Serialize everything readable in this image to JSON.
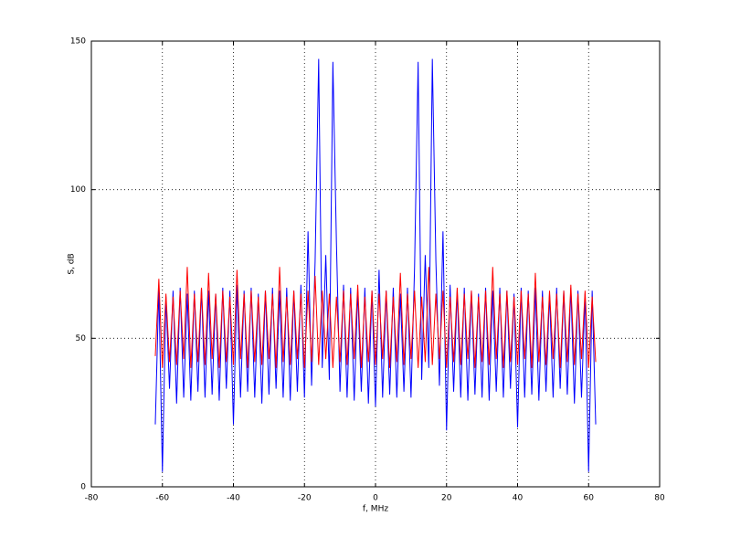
{
  "chart_data": {
    "type": "line",
    "x_label": "f, MHz",
    "y_label": "S, dB",
    "x": [
      -62,
      -61,
      -60,
      -59,
      -58,
      -57,
      -56,
      -55,
      -54,
      -53,
      -52,
      -51,
      -50,
      -49,
      -48,
      -47,
      -46,
      -45,
      -44,
      -43,
      -42,
      -41,
      -40,
      -39,
      -38,
      -37,
      -36,
      -35,
      -34,
      -33,
      -32,
      -31,
      -30,
      -29,
      -28,
      -27,
      -26,
      -25,
      -24,
      -23,
      -22,
      -21,
      -20,
      -19,
      -18,
      -17,
      -16,
      -15,
      -14,
      -13,
      -12,
      -11,
      -10,
      -9,
      -8,
      -7,
      -6,
      -5,
      -4,
      -3,
      -2,
      -1,
      0,
      1,
      2,
      3,
      4,
      5,
      6,
      7,
      8,
      9,
      10,
      11,
      12,
      13,
      14,
      15,
      16,
      17,
      18,
      19,
      20,
      21,
      22,
      23,
      24,
      25,
      26,
      27,
      28,
      29,
      30,
      31,
      32,
      33,
      34,
      35,
      36,
      37,
      38,
      39,
      40,
      41,
      42,
      43,
      44,
      45,
      46,
      47,
      48,
      49,
      50,
      51,
      52,
      53,
      54,
      55,
      56,
      57,
      58,
      59,
      60,
      61,
      62
    ],
    "series": [
      {
        "color": "#0000ff",
        "values": [
          21,
          67,
          5,
          64,
          33,
          66,
          28,
          67,
          30,
          65,
          29,
          66,
          32,
          67,
          30,
          66,
          31,
          65,
          29,
          67,
          33,
          66,
          21,
          68,
          30,
          66,
          32,
          67,
          30,
          65,
          28,
          66,
          31,
          67,
          33,
          66,
          30,
          67,
          29,
          66,
          32,
          68,
          30,
          86,
          34,
          76,
          144,
          40,
          78,
          36,
          143,
          82,
          32,
          68,
          30,
          67,
          29,
          66,
          32,
          67,
          28,
          66,
          27,
          73,
          30,
          66,
          31,
          67,
          30,
          65,
          32,
          67,
          30,
          74,
          143,
          36,
          78,
          40,
          144,
          76,
          34,
          86,
          19,
          68,
          32,
          66,
          30,
          67,
          29,
          66,
          31,
          65,
          30,
          67,
          29,
          66,
          32,
          67,
          30,
          66,
          33,
          65,
          20,
          67,
          30,
          66,
          31,
          67,
          29,
          66,
          32,
          65,
          30,
          67,
          33,
          66,
          31,
          67,
          28,
          66,
          30,
          65,
          5,
          66,
          21
        ]
      },
      {
        "color": "#ff0000",
        "values": [
          44,
          70,
          40,
          65,
          42,
          64,
          41,
          66,
          43,
          74,
          40,
          65,
          42,
          67,
          41,
          72,
          43,
          65,
          40,
          66,
          42,
          64,
          41,
          73,
          43,
          65,
          40,
          66,
          42,
          64,
          41,
          66,
          43,
          65,
          40,
          74,
          42,
          64,
          41,
          66,
          43,
          65,
          40,
          66,
          42,
          71,
          41,
          66,
          43,
          65,
          40,
          64,
          42,
          66,
          41,
          65,
          43,
          68,
          40,
          64,
          42,
          66,
          41,
          65,
          43,
          66,
          40,
          64,
          42,
          72,
          41,
          65,
          43,
          66,
          40,
          64,
          42,
          74,
          41,
          65,
          43,
          66,
          40,
          64,
          42,
          67,
          41,
          65,
          43,
          66,
          40,
          64,
          42,
          66,
          41,
          74,
          43,
          65,
          40,
          66,
          42,
          64,
          41,
          66,
          43,
          65,
          40,
          72,
          42,
          64,
          41,
          66,
          43,
          65,
          40,
          66,
          42,
          68,
          41,
          65,
          43,
          66,
          40,
          64,
          42
        ]
      }
    ],
    "xlim": [
      -80,
      80
    ],
    "xticks": [
      -80,
      -60,
      -40,
      -20,
      0,
      20,
      40,
      60,
      80
    ],
    "ylim": [
      0,
      150
    ],
    "yticks": [
      0,
      50,
      100,
      150
    ],
    "grid": true
  }
}
